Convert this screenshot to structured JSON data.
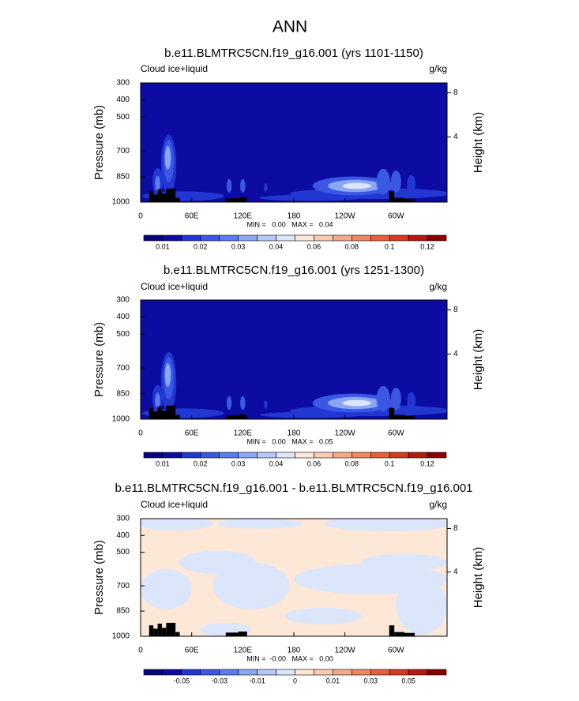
{
  "title": "ANN",
  "chart_data": [
    {
      "type": "contour",
      "title": "b.e11.BLMTRC5CN.f19_g16.001 (yrs 1101-1150)",
      "left_label": "Cloud ice+liquid",
      "right_label": "g/kg",
      "ylabel": "Pressure (mb)",
      "y2label": "Height (km)",
      "xlim": [
        0,
        360
      ],
      "xticks": [
        0,
        {
          "value": 60,
          "label": "60E"
        },
        {
          "value": 120,
          "label": "120E"
        },
        180,
        {
          "value": 240,
          "label": "120W"
        },
        {
          "value": 300,
          "label": "60W"
        }
      ],
      "ylim": [
        1000,
        300
      ],
      "yticks": [
        300,
        400,
        500,
        700,
        850,
        1000
      ],
      "y2lim": [
        -1.9,
        8.9
      ],
      "y2ticks": [
        4,
        8
      ],
      "stats": "MIN =   0.00   MAX =   0.04",
      "colorbar_labels": [
        "0.01",
        "0.02",
        "0.03",
        "0.04",
        "0.06",
        "0.08",
        "0.1",
        "0.12"
      ],
      "colors": [
        "#06067a",
        "#0c0ca2",
        "#2236d2",
        "#3a58e4",
        "#5a7cee",
        "#8aa6f4",
        "#b6c9f8",
        "#dbe6fb",
        "#fde7d6",
        "#f9cbb2",
        "#f4aa8a",
        "#ee8762",
        "#e6603e",
        "#d63a20",
        "#b41a10",
        "#880000"
      ]
    },
    {
      "type": "contour",
      "title": "b.e11.BLMTRC5CN.f19_g16.001 (yrs 1251-1300)",
      "left_label": "Cloud ice+liquid",
      "right_label": "g/kg",
      "ylabel": "Pressure (mb)",
      "y2label": "Height (km)",
      "xlim": [
        0,
        360
      ],
      "xticks": [
        0,
        {
          "value": 60,
          "label": "60E"
        },
        {
          "value": 120,
          "label": "120E"
        },
        180,
        {
          "value": 240,
          "label": "120W"
        },
        {
          "value": 300,
          "label": "60W"
        }
      ],
      "ylim": [
        1000,
        300
      ],
      "yticks": [
        300,
        400,
        500,
        700,
        850,
        1000
      ],
      "y2lim": [
        -1.9,
        8.9
      ],
      "y2ticks": [
        4,
        8
      ],
      "stats": "MIN =   0.00   MAX =   0.05",
      "colorbar_labels": [
        "0.01",
        "0.02",
        "0.03",
        "0.04",
        "0.06",
        "0.08",
        "0.1",
        "0.12"
      ],
      "colors": [
        "#06067a",
        "#0c0ca2",
        "#2236d2",
        "#3a58e4",
        "#5a7cee",
        "#8aa6f4",
        "#b6c9f8",
        "#dbe6fb",
        "#fde7d6",
        "#f9cbb2",
        "#f4aa8a",
        "#ee8762",
        "#e6603e",
        "#d63a20",
        "#b41a10",
        "#880000"
      ]
    },
    {
      "type": "contour",
      "title": "b.e11.BLMTRC5CN.f19_g16.001 - b.e11.BLMTRC5CN.f19_g16.001",
      "left_label": "Cloud ice+liquid",
      "right_label": "g/kg",
      "ylabel": "Pressure (mb)",
      "y2label": "Height (km)",
      "xlim": [
        0,
        360
      ],
      "xticks": [
        0,
        {
          "value": 60,
          "label": "60E"
        },
        {
          "value": 120,
          "label": "120E"
        },
        180,
        {
          "value": 240,
          "label": "120W"
        },
        {
          "value": 300,
          "label": "60W"
        }
      ],
      "ylim": [
        1000,
        300
      ],
      "yticks": [
        300,
        400,
        500,
        700,
        850,
        1000
      ],
      "y2lim": [
        -1.9,
        8.9
      ],
      "y2ticks": [
        4,
        8
      ],
      "stats": "MIN =  -0.00   MAX =   0.00",
      "colorbar_labels": [
        "-0.05",
        "-0.03",
        "-0.01",
        "0",
        "0.01",
        "0.03",
        "0.05"
      ],
      "colors": [
        "#06067a",
        "#0c0ca2",
        "#2236d2",
        "#3a58e4",
        "#5a7cee",
        "#8aa6f4",
        "#b6c9f8",
        "#dbe6fb",
        "#fde7d6",
        "#f9cbb2",
        "#f4aa8a",
        "#ee8762",
        "#e6603e",
        "#d63a20",
        "#b41a10",
        "#880000"
      ]
    }
  ]
}
